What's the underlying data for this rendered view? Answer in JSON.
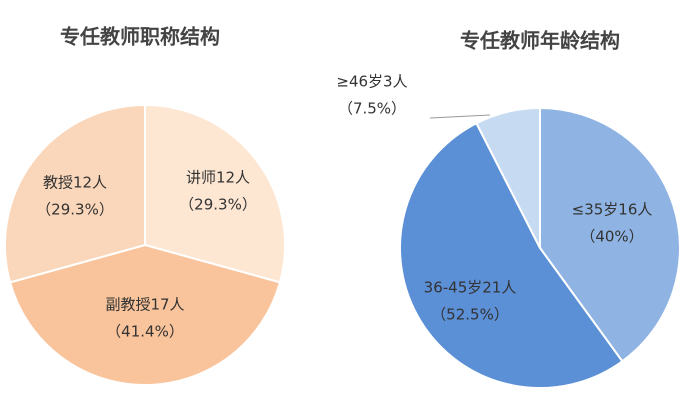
{
  "chart_data": [
    {
      "type": "pie",
      "title": "专任教师职称结构",
      "categories": [
        "讲师12人",
        "副教授17人",
        "教授12人"
      ],
      "values": [
        29.3,
        41.4,
        29.3
      ],
      "value_labels": [
        "（29.3%）",
        "（41.4%）",
        "（29.3%）"
      ],
      "colors": [
        "#fde6d2",
        "#f9c49b",
        "#fad7ba"
      ]
    },
    {
      "type": "pie",
      "title": "专任教师年龄结构",
      "categories": [
        "≤35岁16人",
        "36-45岁21人",
        "≥46岁3人"
      ],
      "values": [
        40,
        52.5,
        7.5
      ],
      "value_labels": [
        "（40%）",
        "（52.5%）",
        "（7.5%）"
      ],
      "colors": [
        "#8fb4e3",
        "#5b8fd6",
        "#c6daf2"
      ]
    }
  ]
}
